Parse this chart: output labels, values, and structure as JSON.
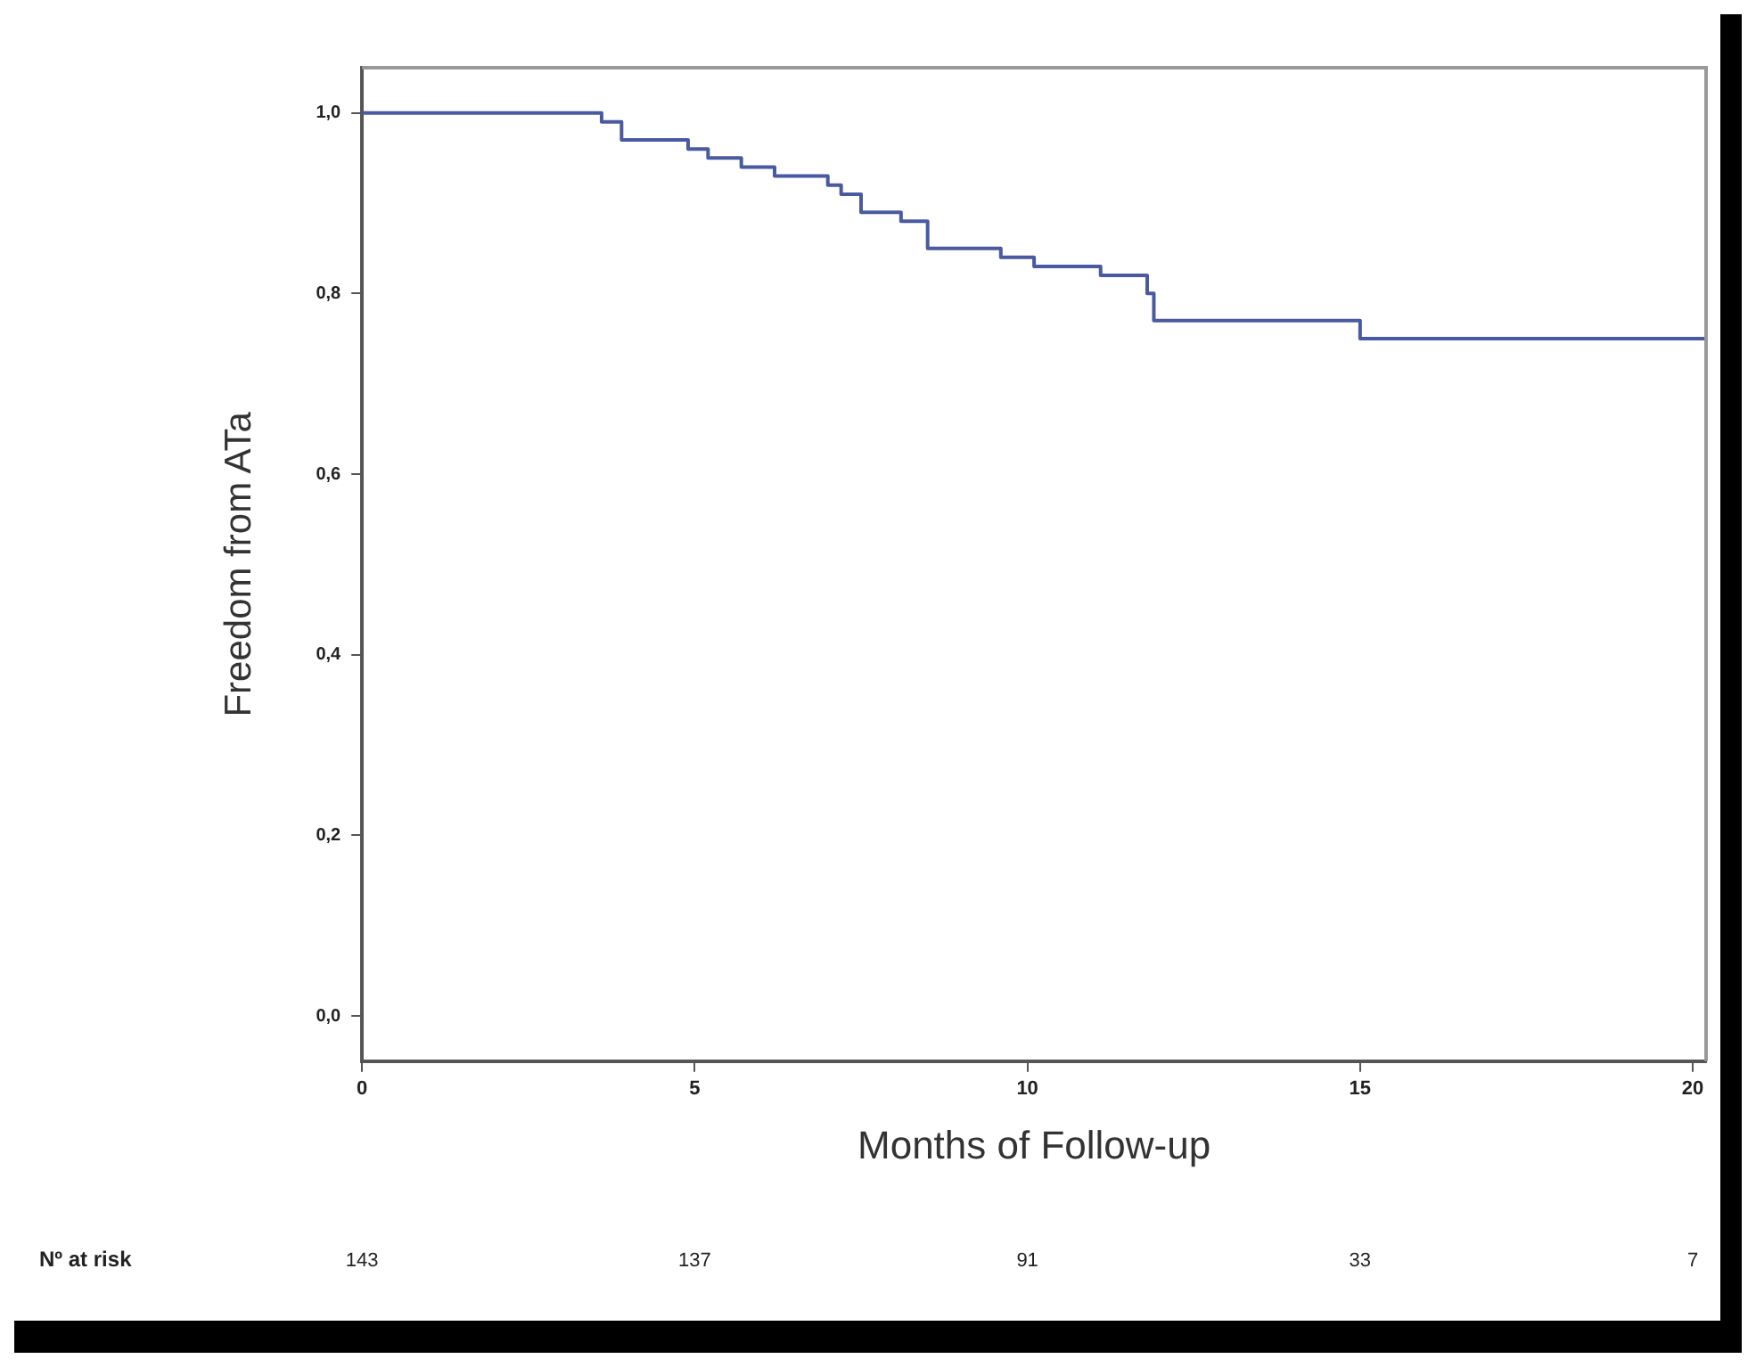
{
  "chart_data": {
    "type": "step",
    "xlabel": "Months of Follow-up",
    "ylabel": "Freedom from ATa",
    "x": [
      0,
      3.6,
      3.9,
      4.9,
      5.2,
      5.7,
      6.2,
      7.0,
      7.2,
      7.5,
      8.1,
      8.5,
      9.6,
      10.1,
      11.1,
      11.8,
      11.9,
      15.0,
      20.2
    ],
    "series": [
      {
        "color": "#4a5aa0",
        "values": [
          1,
          0.99,
          0.97,
          0.96,
          0.95,
          0.94,
          0.93,
          0.92,
          0.91,
          0.89,
          0.88,
          0.85,
          0.84,
          0.83,
          0.82,
          0.8,
          0.77,
          0.75,
          0.75
        ]
      }
    ],
    "xlim": [
      0,
      20.2
    ],
    "ylim": [
      -0.05,
      1.05
    ],
    "xticks": [
      0,
      5,
      10,
      15,
      20
    ],
    "yticks": [
      {
        "value": 0,
        "label": "0,0"
      },
      {
        "value": 0.2,
        "label": "0,2"
      },
      {
        "value": 0.4,
        "label": "0,4"
      },
      {
        "value": 0.6,
        "label": "0,6"
      },
      {
        "value": 0.8,
        "label": "0,8"
      },
      {
        "value": 1,
        "label": "1,0"
      }
    ],
    "grid": false,
    "legend": false,
    "marker": "none",
    "line_style": "solid",
    "annotations": [
      "Nº at risk",
      "143",
      "137",
      "91",
      "33",
      "7"
    ]
  }
}
